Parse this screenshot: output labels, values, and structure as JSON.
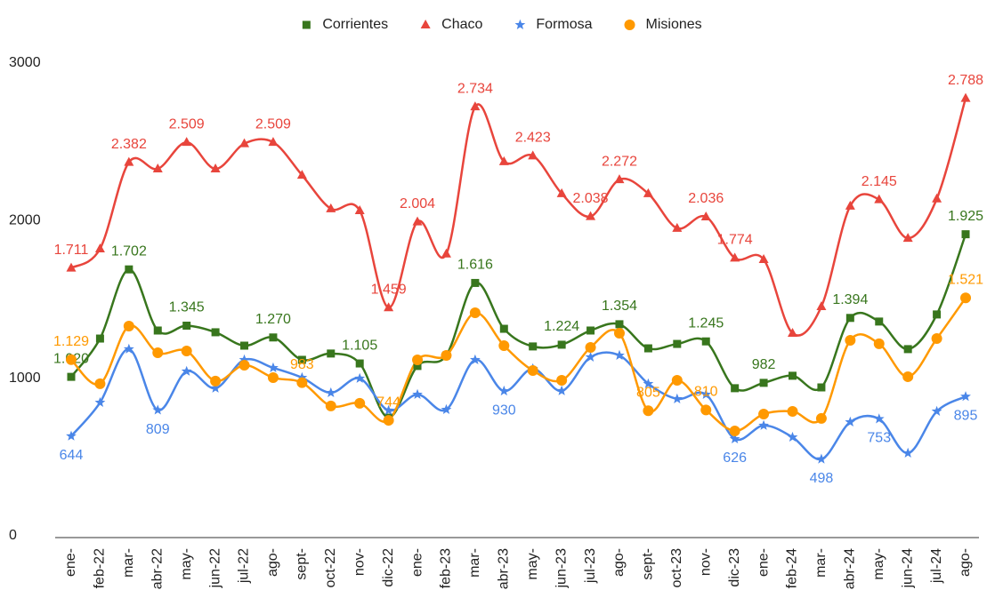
{
  "chart_data": {
    "type": "line",
    "categories": [
      "ene-",
      "feb-22",
      "mar-",
      "abr-22",
      "may-",
      "jun-22",
      "jul-22",
      "ago-",
      "sept-",
      "oct-22",
      "nov-",
      "dic-22",
      "ene-",
      "feb-23",
      "mar-",
      "abr-23",
      "may-",
      "jun-23",
      "jul-23",
      "ago-",
      "sept-",
      "oct-23",
      "nov-",
      "dic-23",
      "ene-",
      "feb-24",
      "mar-",
      "abr-24",
      "may-",
      "jun-24",
      "jul-24",
      "ago-"
    ],
    "series": [
      {
        "name": "Corrientes",
        "color": "#38761d",
        "marker": "square",
        "values": [
          1020,
          1263,
          1702,
          1314,
          1345,
          1303,
          1218,
          1270,
          1128,
          1168,
          1105,
          761,
          1089,
          1156,
          1616,
          1325,
          1213,
          1224,
          1314,
          1354,
          1201,
          1229,
          1245,
          948,
          982,
          1027,
          953,
          1394,
          1371,
          1196,
          1416,
          1925
        ],
        "value_labels": [
          "1.020",
          null,
          "1.702",
          null,
          "1.345",
          null,
          null,
          "1.270",
          null,
          null,
          "1.105",
          null,
          null,
          null,
          "1.616",
          null,
          null,
          "1.224",
          null,
          "1.354",
          null,
          null,
          "1.245",
          null,
          "982",
          null,
          null,
          "1.394",
          null,
          null,
          null,
          "1.925"
        ]
      },
      {
        "name": "Chaco",
        "color": "#e8453c",
        "marker": "triangle",
        "values": [
          1711,
          1833,
          2382,
          2340,
          2509,
          2340,
          2500,
          2509,
          2300,
          2087,
          2075,
          1459,
          2004,
          1800,
          2734,
          2386,
          2423,
          2183,
          2038,
          2272,
          2183,
          1963,
          2036,
          1774,
          1765,
          1297,
          1466,
          2104,
          2145,
          1900,
          2150,
          2788
        ],
        "value_labels": [
          "1.711",
          null,
          "2.382",
          null,
          "2.509",
          null,
          null,
          "2.509",
          null,
          null,
          null,
          "1.459",
          "2.004",
          null,
          "2.734",
          null,
          "2.423",
          null,
          "2.038",
          "2.272",
          null,
          null,
          "2.036",
          "1.774",
          null,
          null,
          null,
          null,
          "2.145",
          null,
          null,
          "2.788"
        ]
      },
      {
        "name": "Formosa",
        "color": "#4a86e8",
        "marker": "star",
        "values": [
          644,
          857,
          1196,
          809,
          1055,
          948,
          1128,
          1077,
          1015,
          919,
          1010,
          807,
          908,
          812,
          1128,
          930,
          1072,
          931,
          1145,
          1156,
          976,
          880,
          908,
          626,
          711,
          637,
          498,
          733,
          753,
          536,
          801,
          895
        ],
        "value_labels": [
          "644",
          null,
          null,
          "809",
          null,
          null,
          null,
          null,
          null,
          null,
          null,
          null,
          null,
          null,
          null,
          "930",
          null,
          null,
          null,
          null,
          null,
          null,
          null,
          "626",
          null,
          null,
          "498",
          null,
          "753",
          null,
          null,
          "895"
        ]
      },
      {
        "name": "Misiones",
        "color": "#ff9900",
        "marker": "circle",
        "values": [
          1129,
          976,
          1342,
          1173,
          1184,
          993,
          1094,
          1015,
          983,
          835,
          852,
          744,
          1128,
          1156,
          1427,
          1218,
          1060,
          998,
          1207,
          1297,
          805,
          998,
          810,
          677,
          784,
          801,
          756,
          1252,
          1230,
          1021,
          1263,
          1521
        ],
        "value_labels": [
          "1.129",
          null,
          null,
          null,
          null,
          null,
          null,
          null,
          "983",
          null,
          null,
          "744",
          null,
          null,
          null,
          null,
          null,
          null,
          null,
          null,
          "805",
          null,
          "810",
          null,
          null,
          null,
          null,
          null,
          null,
          null,
          null,
          "1.521"
        ]
      }
    ],
    "ylim": [
      0,
      3000
    ],
    "yticks": [
      0,
      1000,
      2000,
      3000
    ],
    "grid": false,
    "legend": "top"
  }
}
